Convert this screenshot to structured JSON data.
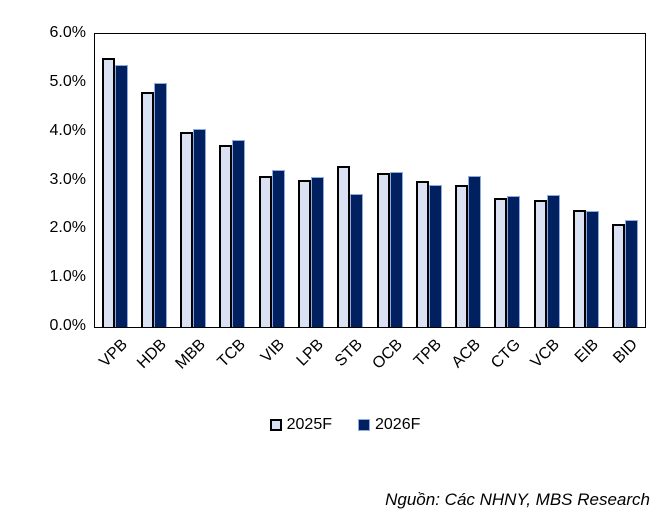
{
  "chart_data": {
    "type": "bar",
    "title": "",
    "xlabel": "",
    "ylabel": "",
    "categories": [
      "VPB",
      "HDB",
      "MBB",
      "TCB",
      "VIB",
      "LPB",
      "STB",
      "OCB",
      "TPB",
      "ACB",
      "CTG",
      "VCB",
      "EIB",
      "BID"
    ],
    "series": [
      {
        "name": "2025F",
        "color": "#D9E1F2",
        "values": [
          5.5,
          4.82,
          4.0,
          3.73,
          3.1,
          3.01,
          3.3,
          3.15,
          3.0,
          2.9,
          2.65,
          2.6,
          2.4,
          2.1
        ]
      },
      {
        "name": "2026F",
        "color": "#002060",
        "values": [
          5.37,
          5.0,
          4.06,
          3.82,
          3.22,
          3.08,
          2.72,
          3.17,
          2.9,
          3.1,
          2.68,
          2.71,
          2.37,
          2.2
        ]
      }
    ],
    "ylim": [
      0,
      6
    ],
    "yticks": [
      "6.0%",
      "5.0%",
      "4.0%",
      "3.0%",
      "2.0%",
      "1.0%",
      "0.0%"
    ],
    "grid": false,
    "legend_position": "bottom"
  },
  "legend": {
    "items": [
      {
        "label": "2025F",
        "color": "#D9E1F2"
      },
      {
        "label": "2026F",
        "color": "#002060"
      }
    ]
  },
  "source_note": "Nguồn: Các NHNY, MBS Research",
  "colors": {
    "background": "#FFFFFF",
    "axis": "#000000",
    "bar_light_fill": "#D9E1F2",
    "bar_light_border": "#000000",
    "bar_dark_fill": "#002060",
    "bar_dark_border": "#8FAADC",
    "text": "#000000"
  }
}
